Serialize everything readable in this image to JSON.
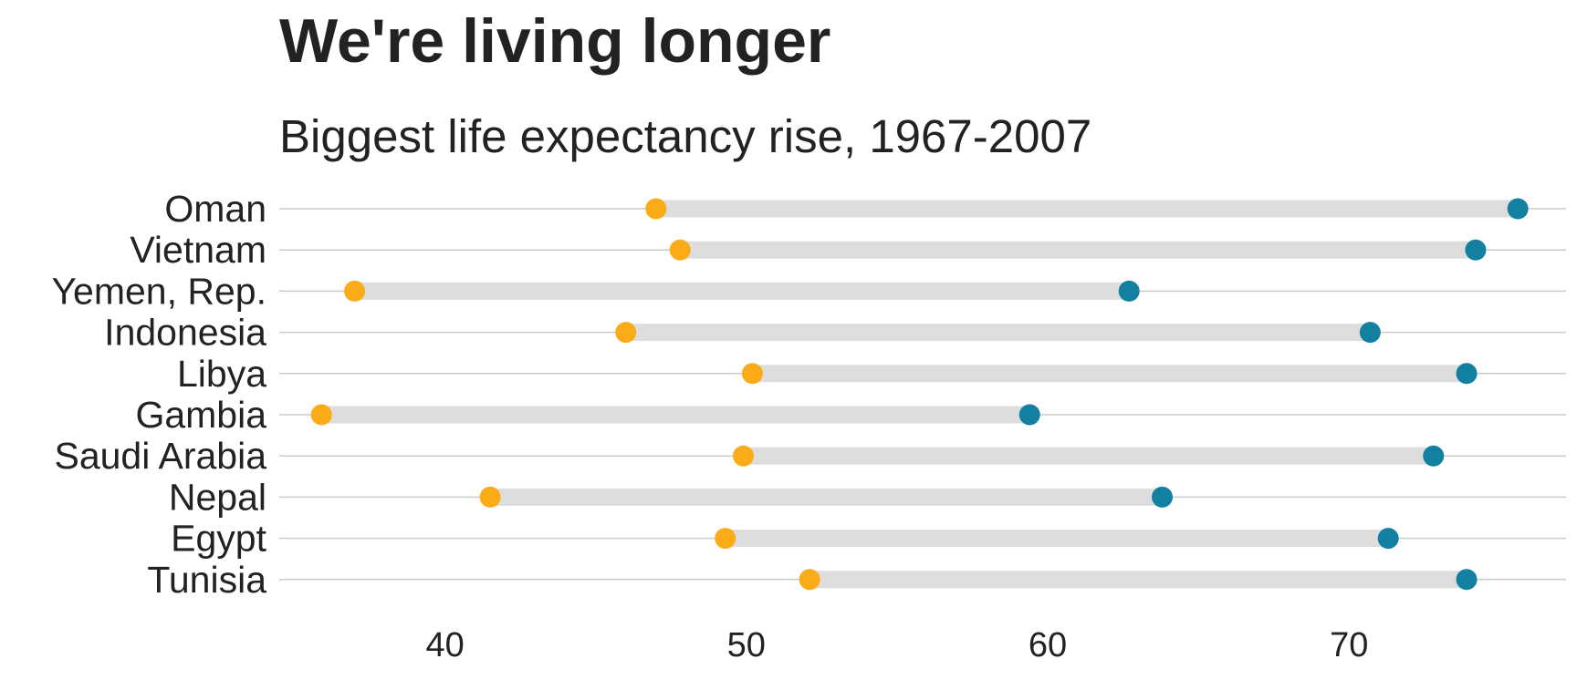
{
  "chart_data": {
    "type": "dumbbell",
    "title": "We're living longer",
    "subtitle": "Biggest life expectancy rise, 1967-2007",
    "xlabel": "",
    "ylabel": "",
    "xlim": [
      34.5,
      77.2
    ],
    "x_ticks": [
      40,
      50,
      60,
      70
    ],
    "grid": "horizontal lines only",
    "legend": "none",
    "start_color": "#FAAB18",
    "end_color": "#1380A1",
    "segment_color": "#DDDDDD",
    "grid_color": "#CBCBCB",
    "categories": [
      "Oman",
      "Vietnam",
      "Yemen, Rep.",
      "Indonesia",
      "Libya",
      "Gambia",
      "Saudi Arabia",
      "Nepal",
      "Egypt",
      "Tunisia"
    ],
    "series": [
      {
        "values": [
          47.0,
          47.8,
          37.0,
          46.0,
          50.2,
          35.9,
          49.9,
          41.5,
          49.3,
          52.1
        ]
      },
      {
        "values": [
          75.6,
          74.2,
          62.7,
          70.7,
          73.9,
          59.4,
          72.8,
          63.8,
          71.3,
          73.9
        ]
      }
    ]
  }
}
